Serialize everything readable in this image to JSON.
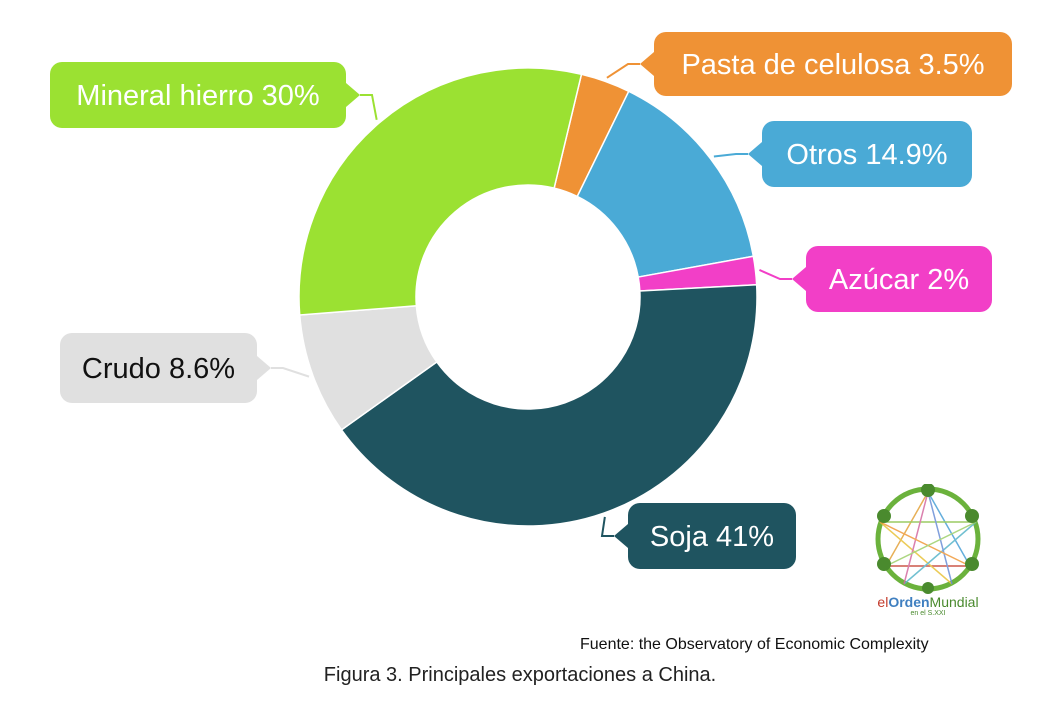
{
  "chart_data": {
    "type": "pie",
    "variant": "donut",
    "title": "",
    "slices": [
      {
        "label": "Pasta de celulosa 3.5%",
        "value": 3.5,
        "color": "#ef9235",
        "text_color": "#ffffff"
      },
      {
        "label": "Otros 14.9%",
        "value": 14.9,
        "color": "#4aaad6",
        "text_color": "#ffffff"
      },
      {
        "label": "Azúcar 2%",
        "value": 2,
        "color": "#f23fc7",
        "text_color": "#ffffff"
      },
      {
        "label": "Soja 41%",
        "value": 41,
        "color": "#1f5460",
        "text_color": "#ffffff"
      },
      {
        "label": "Crudo 8.6%",
        "value": 8.6,
        "color": "#e0e0e0",
        "text_color": "#111111"
      },
      {
        "label": "Mineral hierro 30%",
        "value": 30,
        "color": "#9be132",
        "text_color": "#ffffff"
      }
    ],
    "legend": "callout labels"
  },
  "source": "Fuente: the Observatory of Economic Complexity",
  "caption": "Figura 3. Principales exportaciones a China.",
  "logo": {
    "word_parts": [
      "el",
      "Orden",
      "Mundial"
    ],
    "sub": "en el S.XXI",
    "colors": {
      "el": "#c33a2b",
      "Orden": "#3f7fc0",
      "Mundial": "#4a8a2e"
    }
  }
}
